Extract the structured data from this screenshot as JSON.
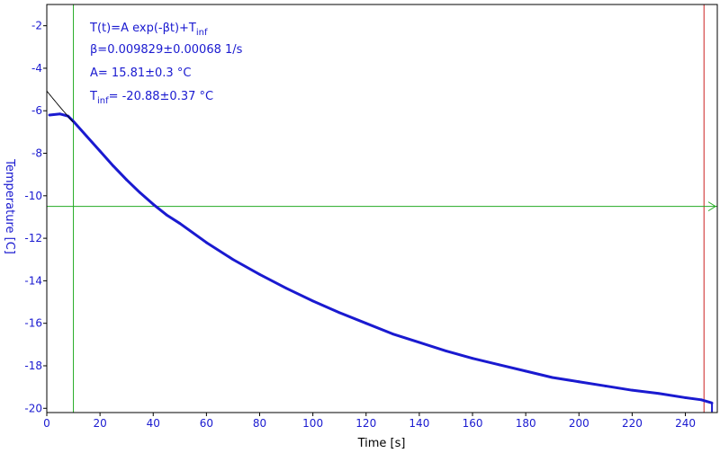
{
  "chart_data": {
    "type": "line",
    "xlabel": "Time [s]",
    "ylabel": "Temperature [C]",
    "xlim": [
      0,
      252
    ],
    "ylim": [
      -20.2,
      -1.0
    ],
    "x_ticks": [
      0,
      20,
      40,
      60,
      80,
      100,
      120,
      140,
      160,
      180,
      200,
      220,
      240
    ],
    "y_ticks": [
      -20,
      -18,
      -16,
      -14,
      -12,
      -10,
      -8,
      -6,
      -4,
      -2
    ],
    "grid": false,
    "fit_function": "T(t)=A exp(-βt)+T_inf",
    "fit_params": {
      "beta": 0.009829,
      "A": 15.81,
      "T_inf": -20.88
    },
    "annotations": {
      "formula_main": "T(t)=A exp(-βt)+T",
      "formula_sub": "inf",
      "beta_line": "β=0.009829±0.00068 1/s",
      "a_line": "A= 15.81±0.3 °C",
      "tinf_prefix": "T",
      "tinf_sub": "inf",
      "tinf_value": "= -20.88±0.37 °C"
    },
    "cursors": {
      "vertical_green_x": 10,
      "vertical_red_x": 247,
      "horizontal_green_y": -10.5
    },
    "series": [
      {
        "values": [
          [
            1,
            -6.2
          ],
          [
            5,
            -6.15
          ],
          [
            8,
            -6.25
          ],
          [
            10,
            -6.5
          ],
          [
            15,
            -7.2
          ],
          [
            20,
            -7.9
          ],
          [
            25,
            -8.6
          ],
          [
            30,
            -9.25
          ],
          [
            35,
            -9.85
          ],
          [
            40,
            -10.4
          ],
          [
            45,
            -10.9
          ],
          [
            50,
            -11.3
          ],
          [
            60,
            -12.2
          ],
          [
            70,
            -13.0
          ],
          [
            80,
            -13.7
          ],
          [
            90,
            -14.35
          ],
          [
            100,
            -14.95
          ],
          [
            110,
            -15.5
          ],
          [
            120,
            -16.0
          ],
          [
            130,
            -16.5
          ],
          [
            140,
            -16.9
          ],
          [
            150,
            -17.3
          ],
          [
            160,
            -17.65
          ],
          [
            170,
            -17.95
          ],
          [
            180,
            -18.25
          ],
          [
            190,
            -18.55
          ],
          [
            200,
            -18.75
          ],
          [
            210,
            -18.95
          ],
          [
            220,
            -19.15
          ],
          [
            230,
            -19.3
          ],
          [
            240,
            -19.5
          ],
          [
            246,
            -19.6
          ],
          [
            250,
            -19.75
          ]
        ]
      }
    ],
    "colors": {
      "data": "#1a1ad0",
      "fit": "#000000",
      "green_cursor": "#22aa22",
      "red_cursor": "#cc2222",
      "axis": "#000000",
      "tick_label": "#1a1ad0",
      "x_title": "#000000",
      "y_title": "#1a1ad0"
    }
  }
}
